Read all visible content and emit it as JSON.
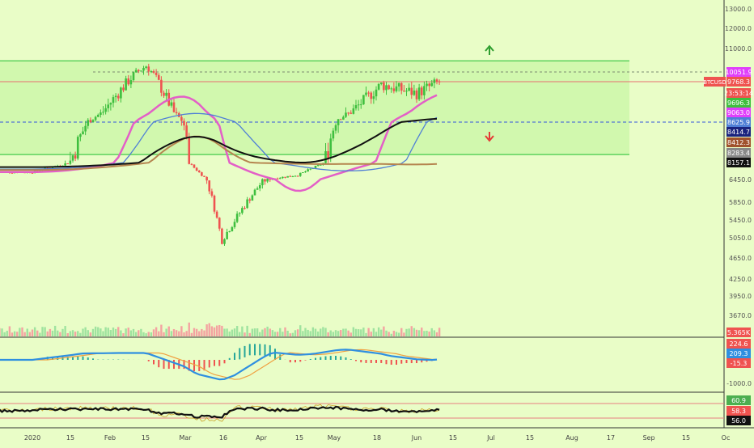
{
  "colors": {
    "background": "#e9fdc7",
    "up": "#3fbf3f",
    "down": "#ef5350",
    "channel": "#5ed35e",
    "channel_fill": "#c8f5a5",
    "ma_pink": "#e35fc7",
    "ma_blue": "#4f7fd6",
    "ma_brown": "#b5854f",
    "ma_black": "#111111",
    "macd_line": "#2f8fe0",
    "signal_line": "#f0a040",
    "rsi_line": "#111111",
    "stoch_line": "#c9a227",
    "level_blue": "#3355dd",
    "level_red": "#e87070"
  },
  "axis": {
    "price_ticks": [
      "13000.0",
      "12000.0",
      "11000.0",
      "10051.9",
      "9768.3",
      "9696.3",
      "9063.0",
      "8625.9",
      "8414.7",
      "8412.3",
      "8283.4",
      "8157.1",
      "6450.0",
      "5850.0",
      "5450.0",
      "5050.0",
      "4650.0",
      "4250.0",
      "3950.0",
      "3670.0"
    ],
    "date_ticks": [
      "2020",
      "15",
      "Feb",
      "15",
      "Mar",
      "16",
      "Apr",
      "15",
      "May",
      "18",
      "Jun",
      "15",
      "Jul",
      "15",
      "Aug",
      "17",
      "Sep",
      "15",
      "Oc"
    ],
    "pane_values": {
      "volume": "5.365K",
      "macd_hist": "224.6",
      "macd": "209.3",
      "signal": "-15.3",
      "macd_low": "-1000.0",
      "rsi_top": "60.9",
      "rsi": "58.3",
      "stoch": "56.0"
    }
  },
  "badges": [
    {
      "text": "10051.9",
      "color": "#e040fb"
    },
    {
      "text": "9768.3",
      "color": "#ef5350"
    },
    {
      "text": "23:53:14",
      "color": "#ef5350"
    },
    {
      "text": "9696.3",
      "color": "#3fbf3f"
    },
    {
      "text": "9063.0",
      "color": "#e040fb"
    },
    {
      "text": "8625.9",
      "color": "#4f7fd6"
    },
    {
      "text": "8414.7",
      "color": "#1a237e"
    },
    {
      "text": "8412.3",
      "color": "#a0522d"
    },
    {
      "text": "8283.4",
      "color": "#888888"
    },
    {
      "text": "8157.1",
      "color": "#111111"
    }
  ],
  "symbol_label": "BTCUSD",
  "chart_data": {
    "type": "line",
    "x": [
      "2020-01-01",
      "2020-01-15",
      "2020-02-01",
      "2020-02-15",
      "2020-03-01",
      "2020-03-16",
      "2020-04-01",
      "2020-04-15",
      "2020-05-01",
      "2020-05-18",
      "2020-06-01",
      "2020-06-10"
    ],
    "series": [
      {
        "values": [
          7200,
          8100,
          9300,
          10300,
          8600,
          5000,
          6400,
          6900,
          8800,
          9700,
          9500,
          9768
        ]
      }
    ],
    "ylim": [
      3670,
      13000
    ],
    "levels": {
      "channel_top": 10500,
      "channel_bottom": 8250,
      "dashed_blue": 8625.9,
      "dashed_gray": 10051.9
    },
    "grid": false,
    "legend": "none"
  }
}
